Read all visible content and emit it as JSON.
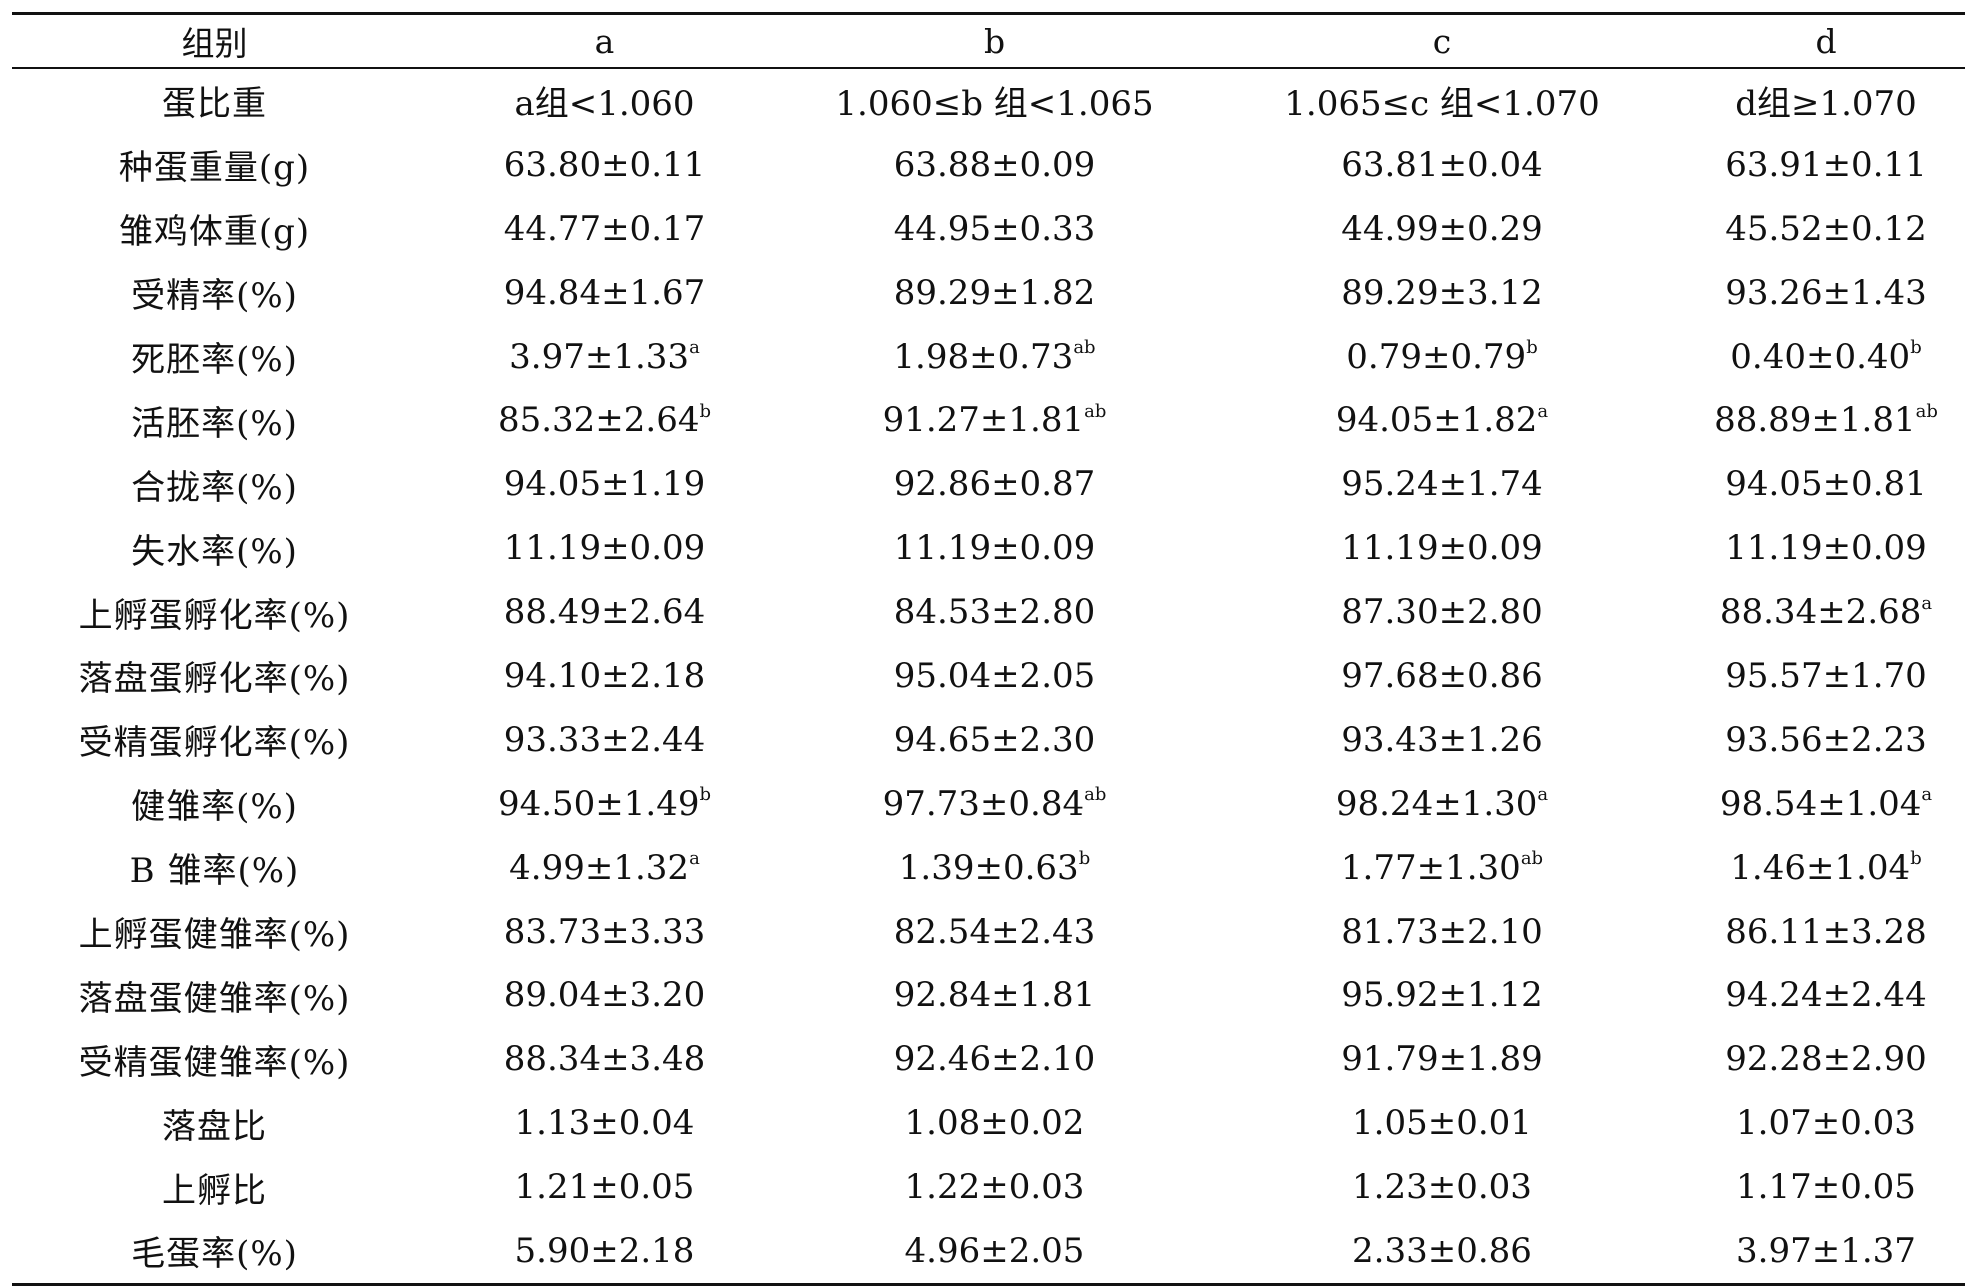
{
  "table": {
    "headers": [
      "组别",
      "a",
      "b",
      "c",
      "d"
    ],
    "rows": [
      {
        "label": "蛋比重",
        "cells": [
          {
            "v": "a组<1.060",
            "s": ""
          },
          {
            "v": "1.060≤b 组<1.065",
            "s": ""
          },
          {
            "v": "1.065≤c 组<1.070",
            "s": ""
          },
          {
            "v": "d组≥1.070",
            "s": ""
          }
        ]
      },
      {
        "label": "种蛋重量(g)",
        "cells": [
          {
            "v": "63.80±0.11",
            "s": ""
          },
          {
            "v": "63.88±0.09",
            "s": ""
          },
          {
            "v": "63.81±0.04",
            "s": ""
          },
          {
            "v": "63.91±0.11",
            "s": ""
          }
        ]
      },
      {
        "label": "雏鸡体重(g)",
        "cells": [
          {
            "v": "44.77±0.17",
            "s": ""
          },
          {
            "v": "44.95±0.33",
            "s": ""
          },
          {
            "v": "44.99±0.29",
            "s": ""
          },
          {
            "v": "45.52±0.12",
            "s": ""
          }
        ]
      },
      {
        "label": "受精率(%)",
        "cells": [
          {
            "v": "94.84±1.67",
            "s": ""
          },
          {
            "v": "89.29±1.82",
            "s": ""
          },
          {
            "v": "89.29±3.12",
            "s": ""
          },
          {
            "v": "93.26±1.43",
            "s": ""
          }
        ]
      },
      {
        "label": "死胚率(%)",
        "cells": [
          {
            "v": "3.97±1.33",
            "s": "a"
          },
          {
            "v": "1.98±0.73",
            "s": "ab"
          },
          {
            "v": "0.79±0.79",
            "s": "b"
          },
          {
            "v": "0.40±0.40",
            "s": "b"
          }
        ]
      },
      {
        "label": "活胚率(%)",
        "cells": [
          {
            "v": "85.32±2.64",
            "s": "b"
          },
          {
            "v": "91.27±1.81",
            "s": "ab"
          },
          {
            "v": "94.05±1.82",
            "s": "a"
          },
          {
            "v": "88.89±1.81",
            "s": "ab"
          }
        ]
      },
      {
        "label": "合拢率(%)",
        "cells": [
          {
            "v": "94.05±1.19",
            "s": ""
          },
          {
            "v": "92.86±0.87",
            "s": ""
          },
          {
            "v": "95.24±1.74",
            "s": ""
          },
          {
            "v": "94.05±0.81",
            "s": ""
          }
        ]
      },
      {
        "label": "失水率(%)",
        "cells": [
          {
            "v": "11.19±0.09",
            "s": ""
          },
          {
            "v": "11.19±0.09",
            "s": ""
          },
          {
            "v": "11.19±0.09",
            "s": ""
          },
          {
            "v": "11.19±0.09",
            "s": ""
          }
        ]
      },
      {
        "label": "上孵蛋孵化率(%)",
        "cells": [
          {
            "v": "88.49±2.64",
            "s": ""
          },
          {
            "v": "84.53±2.80",
            "s": ""
          },
          {
            "v": "87.30±2.80",
            "s": ""
          },
          {
            "v": "88.34±2.68",
            "s": "a"
          }
        ]
      },
      {
        "label": "落盘蛋孵化率(%)",
        "cells": [
          {
            "v": "94.10±2.18",
            "s": ""
          },
          {
            "v": "95.04±2.05",
            "s": ""
          },
          {
            "v": "97.68±0.86",
            "s": ""
          },
          {
            "v": "95.57±1.70",
            "s": ""
          }
        ]
      },
      {
        "label": "受精蛋孵化率(%)",
        "cells": [
          {
            "v": "93.33±2.44",
            "s": ""
          },
          {
            "v": "94.65±2.30",
            "s": ""
          },
          {
            "v": "93.43±1.26",
            "s": ""
          },
          {
            "v": "93.56±2.23",
            "s": ""
          }
        ]
      },
      {
        "label": "健雏率(%)",
        "cells": [
          {
            "v": "94.50±1.49",
            "s": "b"
          },
          {
            "v": "97.73±0.84",
            "s": "ab"
          },
          {
            "v": "98.24±1.30",
            "s": "a"
          },
          {
            "v": "98.54±1.04",
            "s": "a"
          }
        ]
      },
      {
        "label": "B 雏率(%)",
        "cells": [
          {
            "v": "4.99±1.32",
            "s": "a"
          },
          {
            "v": "1.39±0.63",
            "s": "b"
          },
          {
            "v": "1.77±1.30",
            "s": "ab"
          },
          {
            "v": "1.46±1.04",
            "s": "b"
          }
        ]
      },
      {
        "label": "上孵蛋健雏率(%)",
        "cells": [
          {
            "v": "83.73±3.33",
            "s": ""
          },
          {
            "v": "82.54±2.43",
            "s": ""
          },
          {
            "v": "81.73±2.10",
            "s": ""
          },
          {
            "v": "86.11±3.28",
            "s": ""
          }
        ]
      },
      {
        "label": "落盘蛋健雏率(%)",
        "cells": [
          {
            "v": "89.04±3.20",
            "s": ""
          },
          {
            "v": "92.84±1.81",
            "s": ""
          },
          {
            "v": "95.92±1.12",
            "s": ""
          },
          {
            "v": "94.24±2.44",
            "s": ""
          }
        ]
      },
      {
        "label": "受精蛋健雏率(%)",
        "cells": [
          {
            "v": "88.34±3.48",
            "s": ""
          },
          {
            "v": "92.46±2.10",
            "s": ""
          },
          {
            "v": "91.79±1.89",
            "s": ""
          },
          {
            "v": "92.28±2.90",
            "s": ""
          }
        ]
      },
      {
        "label": "落盘比",
        "cells": [
          {
            "v": "1.13±0.04",
            "s": ""
          },
          {
            "v": "1.08±0.02",
            "s": ""
          },
          {
            "v": "1.05±0.01",
            "s": ""
          },
          {
            "v": "1.07±0.03",
            "s": ""
          }
        ]
      },
      {
        "label": "上孵比",
        "cells": [
          {
            "v": "1.21±0.05",
            "s": ""
          },
          {
            "v": "1.22±0.03",
            "s": ""
          },
          {
            "v": "1.23±0.03",
            "s": ""
          },
          {
            "v": "1.17±0.05",
            "s": ""
          }
        ]
      },
      {
        "label": "毛蛋率(%)",
        "cells": [
          {
            "v": "5.90±2.18",
            "s": ""
          },
          {
            "v": "4.96±2.05",
            "s": ""
          },
          {
            "v": "2.33±0.86",
            "s": ""
          },
          {
            "v": "3.97±1.37",
            "s": ""
          }
        ]
      }
    ]
  }
}
